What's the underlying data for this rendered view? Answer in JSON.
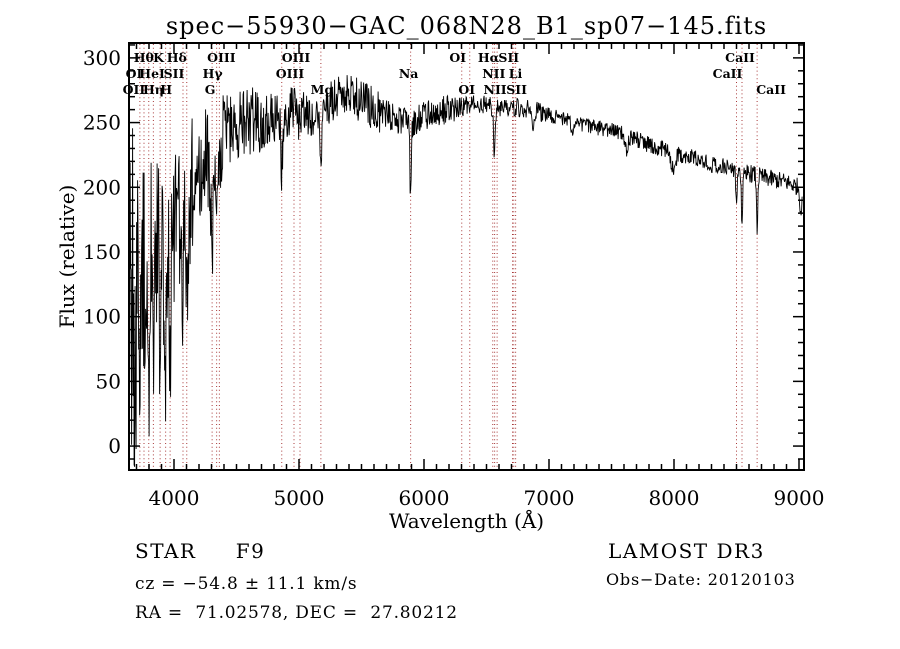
{
  "header": {
    "title": "spec−55930−GAC_068N28_B1_sp07−145.fits"
  },
  "footer": {
    "class_line": "STAR     F9",
    "cz_line": "cz = −54.8 ± 11.1 km/s",
    "radec_line": "RA =  71.02578, DEC =  27.80212",
    "survey": "LAMOST DR3",
    "obs_date": "Obs−Date: 20120103"
  },
  "chart_data": {
    "type": "line",
    "title": "spec−55930−GAC_068N28_B1_sp07−145.fits",
    "xlabel": "Wavelength (Å)",
    "ylabel": "Flux (relative)",
    "xlim": [
      3640,
      9040
    ],
    "ylim": [
      -18.5,
      311.5
    ],
    "x_major_ticks": [
      4000,
      5000,
      6000,
      7000,
      8000,
      9000
    ],
    "x_minor_step": 100,
    "y_major_ticks": [
      0,
      50,
      100,
      150,
      200,
      250,
      300
    ],
    "y_minor_step": 10,
    "grid": false,
    "legend": "none",
    "series_color": "#000000",
    "marker_color": "#a83838",
    "spectral_lines": [
      {
        "wavelength": 3727,
        "label": "OII",
        "row": 3,
        "dx": -6
      },
      {
        "wavelength": 3760,
        "label": "OI",
        "row": 2,
        "dx": -10
      },
      {
        "wavelength": 3798,
        "label": "Hθ",
        "row": 1,
        "dx": -5
      },
      {
        "wavelength": 3835,
        "label": "Hη",
        "row": 3,
        "dx": 0
      },
      {
        "wavelength": 3889,
        "label": "HeI",
        "row": 2,
        "dx": -8
      },
      {
        "wavelength": 3933,
        "label": "K",
        "row": 1,
        "dx": -7
      },
      {
        "wavelength": 3969,
        "label": "H",
        "row": 3,
        "dx": -4
      },
      {
        "wavelength": 4072,
        "label": "SII",
        "row": 2,
        "dx": -9
      },
      {
        "wavelength": 4102,
        "label": "Hδ",
        "row": 1,
        "dx": -10
      },
      {
        "wavelength": 4305,
        "label": "G",
        "row": 3,
        "dx": -2
      },
      {
        "wavelength": 4341,
        "label": "Hγ",
        "row": 2,
        "dx": -4
      },
      {
        "wavelength": 4363,
        "label": "OIII",
        "row": 1,
        "dx": 2
      },
      {
        "wavelength": 4862,
        "label": "",
        "row": 0,
        "dx": 0
      },
      {
        "wavelength": 4960,
        "label": "OIII",
        "row": 2,
        "dx": -4
      },
      {
        "wavelength": 5008,
        "label": "OIII",
        "row": 1,
        "dx": -4
      },
      {
        "wavelength": 5175,
        "label": "Mg",
        "row": 3,
        "dx": 1
      },
      {
        "wavelength": 5893,
        "label": "Na",
        "row": 2,
        "dx": -2
      },
      {
        "wavelength": 6302,
        "label": "OI",
        "row": 1,
        "dx": -4
      },
      {
        "wavelength": 6366,
        "label": "OI",
        "row": 3,
        "dx": -3
      },
      {
        "wavelength": 6550,
        "label": "NII",
        "row": 2,
        "dx": 1
      },
      {
        "wavelength": 6565,
        "label": "Hα",
        "row": 1,
        "dx": -6
      },
      {
        "wavelength": 6585,
        "label": "NII",
        "row": 3,
        "dx": -2
      },
      {
        "wavelength": 6708,
        "label": "Li",
        "row": 2,
        "dx": 3
      },
      {
        "wavelength": 6718,
        "label": "SII",
        "row": 1,
        "dx": -5
      },
      {
        "wavelength": 6733,
        "label": "SII",
        "row": 3,
        "dx": 1
      },
      {
        "wavelength": 8500,
        "label": "CaII",
        "row": 2,
        "dx": -9
      },
      {
        "wavelength": 8544,
        "label": "CaII",
        "row": 1,
        "dx": -2
      },
      {
        "wavelength": 8665,
        "label": "CaII",
        "row": 3,
        "dx": 14
      }
    ],
    "spectrum": {
      "wavelength_start": 3645,
      "wavelength_end": 9028,
      "step": 4,
      "noise_seed": 20120103,
      "clamp": [
        -16,
        305
      ],
      "continuum": [
        [
          3645,
          120
        ],
        [
          3700,
          118
        ],
        [
          3760,
          135
        ],
        [
          3820,
          146
        ],
        [
          3880,
          152
        ],
        [
          3940,
          158
        ],
        [
          4000,
          167
        ],
        [
          4060,
          176
        ],
        [
          4120,
          190
        ],
        [
          4180,
          208
        ],
        [
          4240,
          220
        ],
        [
          4300,
          223
        ],
        [
          4360,
          232
        ],
        [
          4420,
          244
        ],
        [
          4480,
          250
        ],
        [
          4560,
          252
        ],
        [
          4640,
          252
        ],
        [
          4720,
          250
        ],
        [
          4800,
          253
        ],
        [
          4880,
          255
        ],
        [
          4960,
          257
        ],
        [
          5040,
          257
        ],
        [
          5120,
          256
        ],
        [
          5200,
          262
        ],
        [
          5280,
          268
        ],
        [
          5360,
          272
        ],
        [
          5440,
          270
        ],
        [
          5520,
          266
        ],
        [
          5600,
          261
        ],
        [
          5700,
          256
        ],
        [
          5800,
          252
        ],
        [
          5900,
          251
        ],
        [
          6000,
          254
        ],
        [
          6100,
          257
        ],
        [
          6200,
          260
        ],
        [
          6300,
          262
        ],
        [
          6400,
          264
        ],
        [
          6500,
          263
        ],
        [
          6600,
          261
        ],
        [
          6700,
          262
        ],
        [
          6800,
          261
        ],
        [
          6900,
          259
        ],
        [
          7000,
          256
        ],
        [
          7100,
          253
        ],
        [
          7200,
          251
        ],
        [
          7300,
          248
        ],
        [
          7400,
          246
        ],
        [
          7500,
          244
        ],
        [
          7600,
          241
        ],
        [
          7700,
          237
        ],
        [
          7800,
          233
        ],
        [
          7900,
          230
        ],
        [
          8000,
          227
        ],
        [
          8100,
          224
        ],
        [
          8200,
          221
        ],
        [
          8300,
          218
        ],
        [
          8400,
          216
        ],
        [
          8500,
          213
        ],
        [
          8600,
          211
        ],
        [
          8700,
          208
        ],
        [
          8800,
          206
        ],
        [
          8900,
          204
        ],
        [
          9000,
          200
        ],
        [
          9028,
          192
        ]
      ],
      "noise_regions": [
        [
          3645,
          3700,
          145
        ],
        [
          3700,
          3780,
          95
        ],
        [
          3780,
          3960,
          75
        ],
        [
          3960,
          4150,
          58
        ],
        [
          4150,
          4400,
          40
        ],
        [
          4400,
          4700,
          28
        ],
        [
          4700,
          5000,
          21
        ],
        [
          5000,
          5650,
          17
        ],
        [
          5650,
          6250,
          12
        ],
        [
          6250,
          6950,
          7.5
        ],
        [
          6950,
          7600,
          6
        ],
        [
          7600,
          8450,
          6.5
        ],
        [
          8450,
          9029,
          7
        ]
      ],
      "absorption_lines": [
        [
          3727,
          65,
          5
        ],
        [
          3798,
          75,
          5
        ],
        [
          3835,
          80,
          5
        ],
        [
          3889,
          85,
          6
        ],
        [
          3934,
          120,
          7
        ],
        [
          3969,
          105,
          7
        ],
        [
          4072,
          60,
          6
        ],
        [
          4102,
          78,
          7
        ],
        [
          4227,
          45,
          6
        ],
        [
          4305,
          65,
          9
        ],
        [
          4341,
          60,
          7
        ],
        [
          4862,
          42,
          8
        ],
        [
          5175,
          28,
          10
        ],
        [
          5893,
          62,
          6
        ],
        [
          6563,
          40,
          6
        ],
        [
          6870,
          10,
          8
        ],
        [
          7190,
          8,
          10
        ],
        [
          7620,
          12,
          12
        ],
        [
          7990,
          12,
          20
        ],
        [
          8500,
          26,
          5
        ],
        [
          8544,
          44,
          5
        ],
        [
          8665,
          42,
          5
        ],
        [
          9015,
          14,
          8
        ]
      ]
    }
  }
}
